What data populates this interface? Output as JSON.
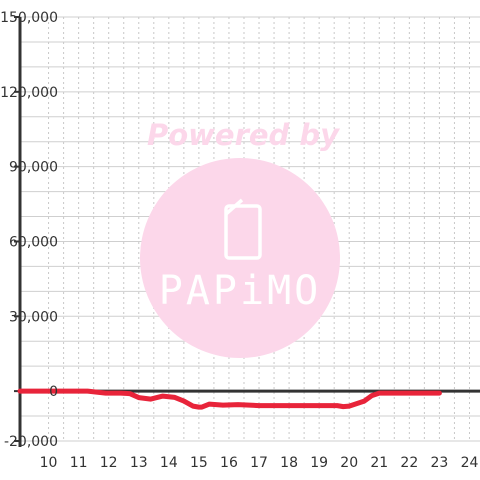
{
  "chart_data": {
    "type": "line",
    "title": "",
    "xlabel": "",
    "ylabel": "",
    "xlim": [
      9.05,
      24.35
    ],
    "ylim": [
      -20000,
      150000
    ],
    "x_ticks": [
      10,
      11,
      12,
      13,
      14,
      15,
      16,
      17,
      18,
      19,
      20,
      21,
      22,
      23,
      24
    ],
    "x_tick_labels": [
      "10",
      "11",
      "12",
      "13",
      "14",
      "15",
      "16",
      "17",
      "18",
      "19",
      "20",
      "21",
      "22",
      "23",
      "24"
    ],
    "y_ticks": [
      -20000,
      0,
      30000,
      60000,
      90000,
      120000,
      150000
    ],
    "y_tick_labels": [
      "-20,000",
      "0",
      "30,000",
      "60,000",
      "90,000",
      "120,000",
      "150,000"
    ],
    "grid": true,
    "series": [
      {
        "color": "#e8243a",
        "x": [
          9.05,
          11.3,
          11.9,
          12.4,
          12.7,
          13.0,
          13.4,
          13.8,
          14.2,
          14.5,
          14.8,
          15.0,
          15.1,
          15.35,
          15.8,
          16.3,
          17.0,
          18.0,
          19.0,
          19.6,
          19.8,
          20.0,
          20.3,
          20.5,
          20.75,
          21.0,
          21.5,
          22.0,
          23.0
        ],
        "y": [
          0,
          0,
          -800,
          -800,
          -1000,
          -2600,
          -3200,
          -2000,
          -2500,
          -4000,
          -6000,
          -6400,
          -6400,
          -5200,
          -5600,
          -5400,
          -5800,
          -5800,
          -5800,
          -5800,
          -6200,
          -6000,
          -4800,
          -4000,
          -1800,
          -800,
          -800,
          -800,
          -800
        ]
      }
    ]
  },
  "watermark": {
    "text": "Powered by",
    "logo_text": "PAPiMO",
    "color": "#fcd7ea",
    "icon": "phone-icon"
  }
}
